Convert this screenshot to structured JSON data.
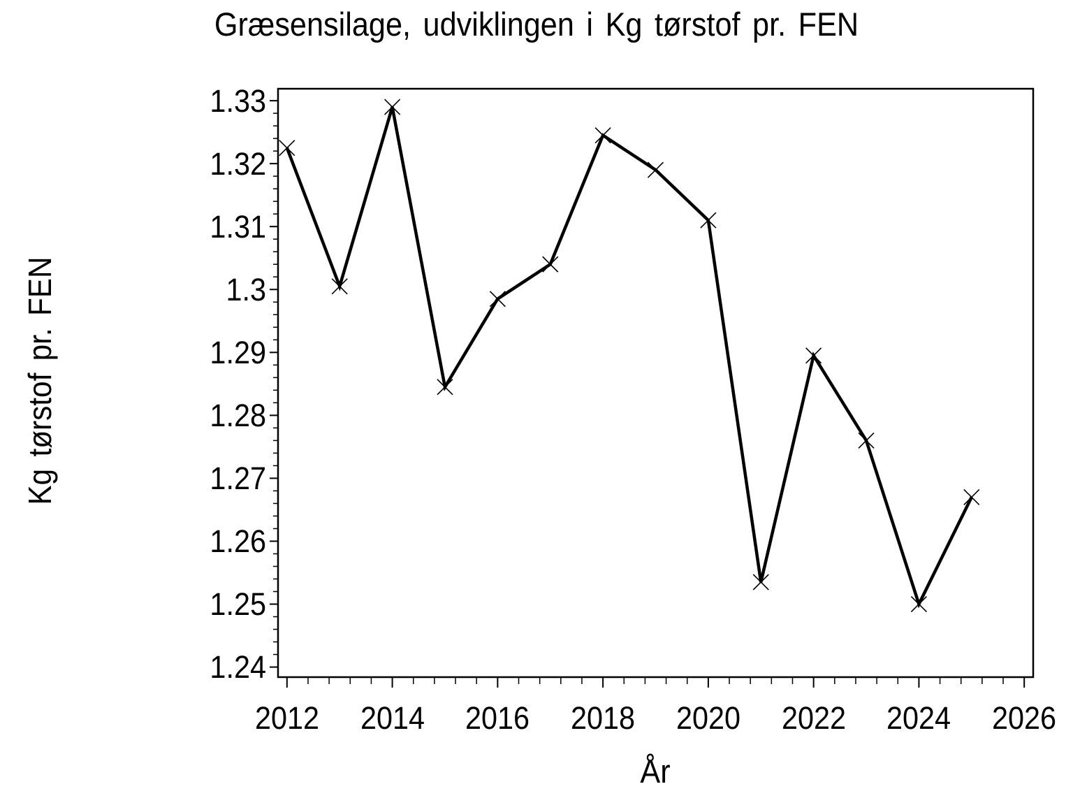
{
  "page": {
    "background": "#ffffff",
    "text_color": "#000000"
  },
  "chart_data": {
    "type": "line",
    "title": "Græsensilage, udviklingen i Kg tørstof pr. FEN",
    "xlabel": "År",
    "ylabel": "Kg tørstof pr. FEN",
    "x": [
      2012,
      2013,
      2014,
      2015,
      2016,
      2017,
      2018,
      2019,
      2020,
      2021,
      2022,
      2023,
      2024,
      2025
    ],
    "values": [
      1.3225,
      1.3005,
      1.329,
      1.2845,
      1.2985,
      1.304,
      1.3245,
      1.319,
      1.311,
      1.2535,
      1.2895,
      1.276,
      1.25,
      1.267
    ],
    "series_name": "Kg tørstof pr. FEN",
    "marker": "x",
    "line_color": "#000000",
    "marker_color": "#000000",
    "grid": false,
    "legend": "none",
    "xlim": [
      2011.83,
      2026.17
    ],
    "ylim": [
      1.2384,
      1.3319
    ],
    "x_major_ticks": [
      2012,
      2014,
      2016,
      2018,
      2020,
      2022,
      2024,
      2026
    ],
    "x_tick_labels": [
      "2012",
      "2014",
      "2016",
      "2018",
      "2020",
      "2022",
      "2024",
      "2026"
    ],
    "x_minor_tick_step": 0.4,
    "y_major_ticks": [
      1.33,
      1.32,
      1.31,
      1.3,
      1.29,
      1.28,
      1.27,
      1.26,
      1.25,
      1.24
    ],
    "y_tick_labels": [
      "1.33",
      "1.32",
      "1.31",
      "1.3",
      "1.29",
      "1.28",
      "1.27",
      "1.26",
      "1.25",
      "1.24"
    ],
    "y_minor_tick_step": 0.002
  }
}
